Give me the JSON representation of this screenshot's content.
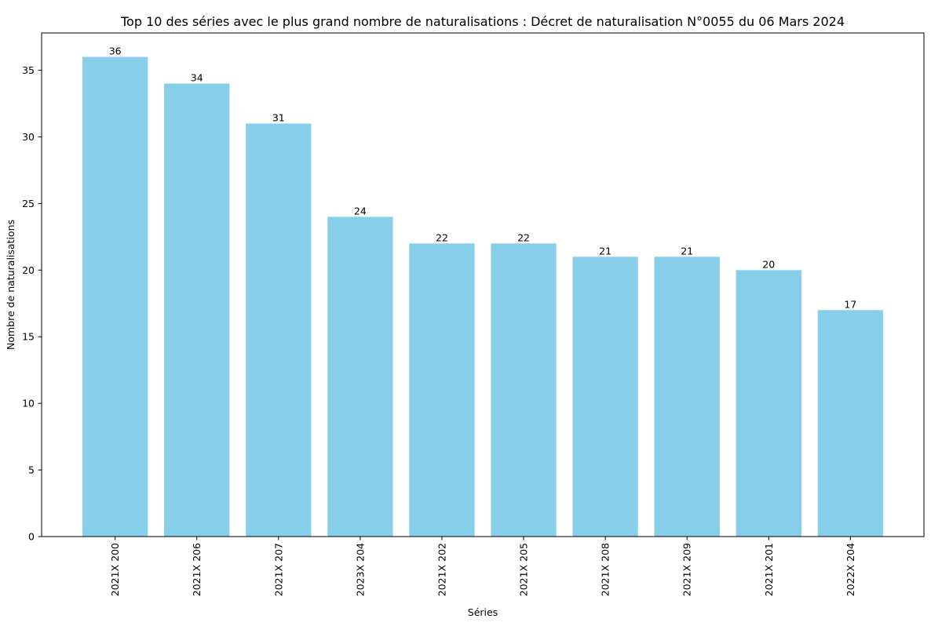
{
  "chart_data": {
    "type": "bar",
    "title": "Top 10 des séries avec le plus grand nombre de naturalisations : Décret de naturalisation N°0055 du 06 Mars 2024",
    "xlabel": "Séries",
    "ylabel": "Nombre de naturalisations",
    "categories": [
      "2021X 200",
      "2021X 206",
      "2021X 207",
      "2023X 204",
      "2021X 202",
      "2021X 205",
      "2021X 208",
      "2021X 209",
      "2021X 201",
      "2022X 204"
    ],
    "values": [
      36,
      34,
      31,
      24,
      22,
      22,
      21,
      21,
      20,
      17
    ],
    "ylim": [
      0,
      37.8
    ],
    "yticks": [
      0,
      5,
      10,
      15,
      20,
      25,
      30,
      35
    ],
    "grid": false,
    "legend": "none",
    "bar_color": "#87ceeb",
    "x_tick_rotation": 90
  }
}
